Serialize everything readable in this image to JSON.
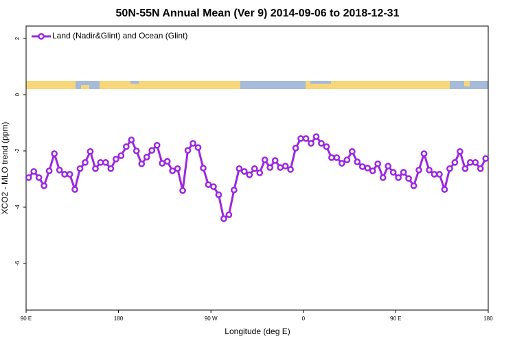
{
  "chart_data": {
    "type": "line",
    "title": "50N-55N Annual Mean (Ver 9)   2014-09-06 to 2018-12-31",
    "xlabel": "Longitude (deg E)",
    "ylabel": "XCO2 - MLO trend (ppm)",
    "xlim": [
      90,
      540
    ],
    "ylim": [
      -7.66,
      2.44
    ],
    "xticks": [
      {
        "value": 90,
        "label": "90 E"
      },
      180,
      {
        "value": 270,
        "label": "90 W"
      },
      {
        "value": 360,
        "label": "0"
      },
      {
        "value": 450,
        "label": "90 E"
      },
      {
        "value": 540,
        "label": "180"
      }
    ],
    "yticks": [
      2,
      0,
      -2,
      -4,
      -6
    ],
    "legend": "upper left",
    "x": [
      92.5,
      97.5,
      102.5,
      107.5,
      112.5,
      117.5,
      122.5,
      127.5,
      132.5,
      137.5,
      142.5,
      147.5,
      152.5,
      157.5,
      162.5,
      167.5,
      172.5,
      177.5,
      182.5,
      187.5,
      192.5,
      197.5,
      202.5,
      207.5,
      212.5,
      217.5,
      222.5,
      227.5,
      232.5,
      237.5,
      242.5,
      247.5,
      252.5,
      257.5,
      262.5,
      267.5,
      272.5,
      277.5,
      282.5,
      287.5,
      292.5,
      297.5,
      302.5,
      307.5,
      312.5,
      317.5,
      322.5,
      327.5,
      332.5,
      337.5,
      342.5,
      347.5,
      352.5,
      357.5,
      362.5,
      367.5,
      372.5,
      377.5,
      382.5,
      387.5,
      392.5,
      397.5,
      402.5,
      407.5,
      412.5,
      417.5,
      422.5,
      427.5,
      432.5,
      437.5,
      442.5,
      447.5,
      452.5,
      457.5,
      462.5,
      467.5,
      472.5,
      477.5,
      482.5,
      487.5,
      492.5,
      497.5,
      502.5,
      507.5,
      512.5,
      517.5,
      522.5,
      527.5,
      532.5,
      537.5
    ],
    "series": [
      {
        "name": "Land (Nadir&Glint) and Ocean (Glint)",
        "color": "#9b27e0",
        "values": [
          -2.95,
          -2.73,
          -2.95,
          -3.24,
          -2.71,
          -2.1,
          -2.68,
          -2.83,
          -2.83,
          -3.37,
          -2.63,
          -2.41,
          -2.02,
          -2.63,
          -2.41,
          -2.41,
          -2.63,
          -2.29,
          -2.17,
          -1.85,
          -1.61,
          -2.0,
          -2.46,
          -2.22,
          -1.98,
          -1.8,
          -2.44,
          -2.37,
          -2.71,
          -2.63,
          -3.41,
          -1.98,
          -1.73,
          -1.88,
          -2.61,
          -3.2,
          -3.27,
          -3.56,
          -4.41,
          -4.27,
          -3.39,
          -2.63,
          -2.73,
          -2.85,
          -2.63,
          -2.78,
          -2.32,
          -2.59,
          -2.34,
          -2.59,
          -2.54,
          -2.66,
          -1.9,
          -1.56,
          -1.56,
          -1.73,
          -1.49,
          -1.73,
          -1.85,
          -2.24,
          -2.24,
          -2.44,
          -2.32,
          -2.02,
          -2.39,
          -2.56,
          -2.61,
          -2.71,
          -2.46,
          -2.95,
          -2.54,
          -2.76,
          -2.95,
          -2.76,
          -2.98,
          -3.24,
          -2.68,
          -2.1,
          -2.68,
          -2.83,
          -2.83,
          -3.37,
          -2.63,
          -2.41,
          -2.02,
          -2.63,
          -2.41,
          -2.41,
          -2.63,
          -2.27
        ]
      }
    ]
  }
}
